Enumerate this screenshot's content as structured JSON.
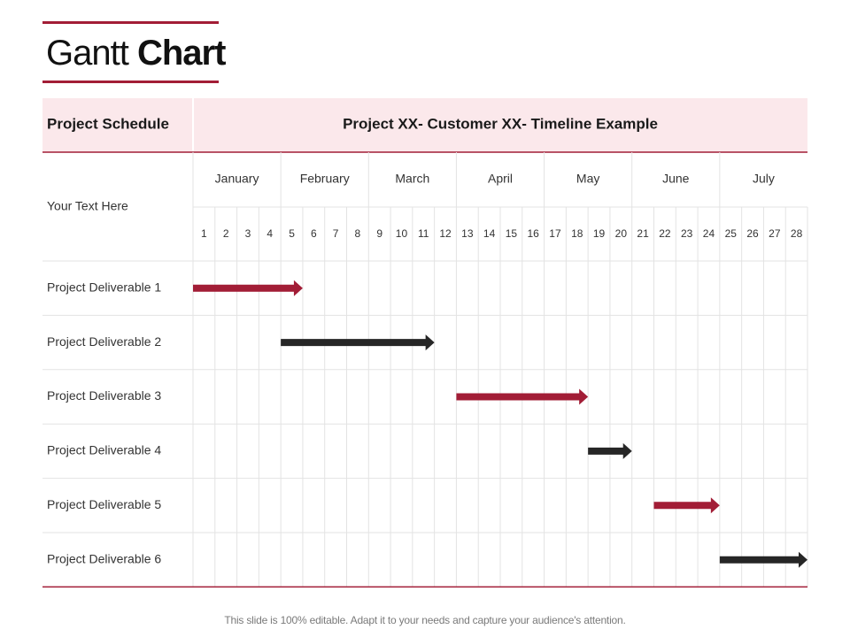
{
  "page_title": {
    "regular": "Gantt",
    "bold": "Chart"
  },
  "chart_data": {
    "type": "gantt",
    "header": {
      "left": "Project Schedule",
      "right": "Project XX- Customer XX- Timeline Example"
    },
    "row_label_header": "Your Text Here",
    "months": [
      "January",
      "February",
      "March",
      "April",
      "May",
      "June",
      "July"
    ],
    "periods": [
      1,
      2,
      3,
      4,
      5,
      6,
      7,
      8,
      9,
      10,
      11,
      12,
      13,
      14,
      15,
      16,
      17,
      18,
      19,
      20,
      21,
      22,
      23,
      24,
      25,
      26,
      27,
      28
    ],
    "tasks": [
      {
        "label": "Project Deliverable 1",
        "start": 1,
        "end": 5,
        "color": "#a21d36"
      },
      {
        "label": "Project Deliverable 2",
        "start": 5,
        "end": 11,
        "color": "#262626"
      },
      {
        "label": "Project Deliverable 3",
        "start": 13,
        "end": 18,
        "color": "#a21d36"
      },
      {
        "label": "Project Deliverable 4",
        "start": 19,
        "end": 20,
        "color": "#262626"
      },
      {
        "label": "Project Deliverable 5",
        "start": 22,
        "end": 24,
        "color": "#a21d36"
      },
      {
        "label": "Project Deliverable 6",
        "start": 25,
        "end": 28,
        "color": "#262626"
      }
    ]
  },
  "colors": {
    "accent": "#a21d36",
    "header_bg": "#fbe8eb",
    "grid": "#e3e3e3",
    "dark_bar": "#262626"
  },
  "footer": "This slide is 100% editable. Adapt it to your needs and capture your audience's attention."
}
